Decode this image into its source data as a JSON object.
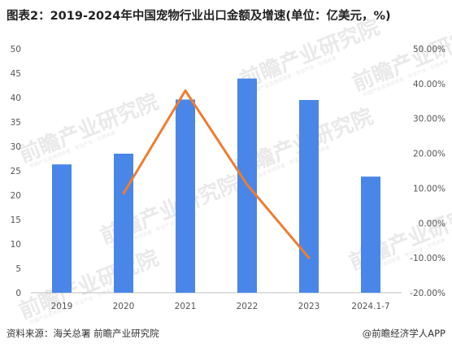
{
  "title": "图表2：2019-2024年中国宠物行业出口金额及增速(单位：亿美元，%)",
  "source": "资料来源：海关总署 前瞻产业研究院",
  "credit": "@前瞻经济学人APP",
  "watermark": {
    "text": "前瞻产业研究院",
    "sub": "中国产业咨询领导者 · 专注产业 · 引领未来"
  },
  "colors": {
    "bar": "#4a86e8",
    "line": "#ed7d31",
    "axis": "#bfbfbf"
  },
  "chart_data": {
    "type": "bar",
    "categories": [
      "2019",
      "2020",
      "2021",
      "2022",
      "2023",
      "2024.1-7"
    ],
    "series": [
      {
        "type": "bar",
        "axis": "left",
        "values": [
          26.3,
          28.5,
          39.6,
          43.9,
          39.5,
          23.8
        ]
      },
      {
        "type": "line",
        "axis": "right",
        "values": [
          null,
          0.085,
          0.38,
          0.11,
          -0.1,
          null
        ]
      }
    ],
    "ylim_left": [
      0,
      50
    ],
    "yticks_left": [
      "0",
      "5",
      "10",
      "15",
      "20",
      "25",
      "30",
      "35",
      "40",
      "45",
      "50"
    ],
    "ylim_right": [
      -0.2,
      0.5
    ],
    "yticks_right": [
      "-20.00%",
      "-10.00%",
      "0.00%",
      "10.00%",
      "20.00%",
      "30.00%",
      "40.00%",
      "50.00%"
    ],
    "grid": false
  }
}
